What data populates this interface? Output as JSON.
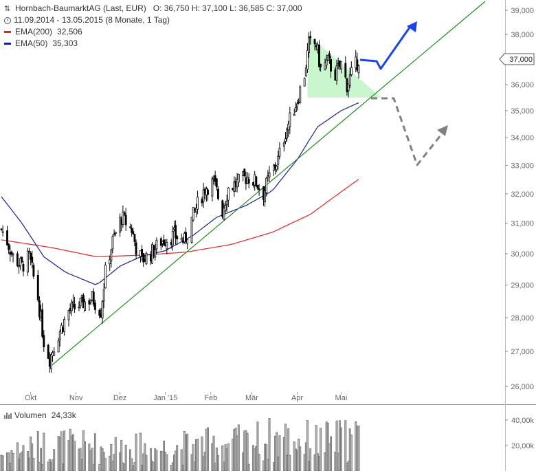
{
  "header": {
    "title": "Hornbach-BaumarktAG (Last, EUR)",
    "ohlc": "O: 36,750  H: 37,100  L: 36,585  C: 37,000",
    "period": "11.09.2014 - 13.05.2015 (8 Monate, 1 Tag)",
    "ema200_label": "EMA(200)",
    "ema200_value": "32,506",
    "ema50_label": "EMA(50)",
    "ema50_value": "35,303",
    "volume_label": "Volumen",
    "volume_value": "24,33k"
  },
  "colors": {
    "ema200": "#e8221f",
    "ema50": "#1c1c9c",
    "trendline": "#1f8c1f",
    "triangle_fill": "#bff5c4",
    "arrow_up": "#1a44e8",
    "arrow_down": "#808080",
    "candle": "#000000",
    "volume": "#8c8c8c"
  },
  "chart_data": {
    "type": "candlestick",
    "title": "Hornbach-BaumarktAG (Last, EUR)",
    "price_axis": {
      "ticks": [
        26,
        27,
        28,
        29,
        30,
        31,
        32,
        33,
        34,
        35,
        36,
        37,
        38,
        39
      ],
      "tick_labels": [
        "26,000",
        "27,000",
        "28,000",
        "29,000",
        "30,000",
        "31,000",
        "32,000",
        "33,000",
        "34,000",
        "35,000",
        "36,000",
        "37,000",
        "38,000",
        "39,000"
      ],
      "range": [
        25.6,
        39.2
      ],
      "scale": "log",
      "last_price_label": "37,000",
      "grid": false
    },
    "time_axis": {
      "start": "2014-09-11",
      "end": "2015-05-13",
      "month_labels": [
        {
          "label": "Okt",
          "date": "2014-10-01"
        },
        {
          "label": "Nov",
          "date": "2014-11-01"
        },
        {
          "label": "Dez",
          "date": "2014-12-01"
        },
        {
          "label": "Jan '15",
          "date": "2015-01-01"
        },
        {
          "label": "Feb",
          "date": "2015-02-01"
        },
        {
          "label": "Mär",
          "date": "2015-03-01"
        },
        {
          "label": "Apr",
          "date": "2015-04-01"
        },
        {
          "label": "Mai",
          "date": "2015-05-01"
        }
      ]
    },
    "close_anchors": [
      {
        "date": "2014-09-11",
        "value": 30.8
      },
      {
        "date": "2014-09-15",
        "value": 30.4
      },
      {
        "date": "2014-09-19",
        "value": 29.9
      },
      {
        "date": "2014-09-25",
        "value": 29.6
      },
      {
        "date": "2014-09-30",
        "value": 29.9
      },
      {
        "date": "2014-10-06",
        "value": 28.6
      },
      {
        "date": "2014-10-10",
        "value": 27.3
      },
      {
        "date": "2014-10-14",
        "value": 26.8
      },
      {
        "date": "2014-10-20",
        "value": 27.5
      },
      {
        "date": "2014-10-27",
        "value": 28.2
      },
      {
        "date": "2014-11-04",
        "value": 28.4
      },
      {
        "date": "2014-11-12",
        "value": 28.6
      },
      {
        "date": "2014-11-18",
        "value": 28.2
      },
      {
        "date": "2014-11-21",
        "value": 29.4
      },
      {
        "date": "2014-11-26",
        "value": 30.4
      },
      {
        "date": "2014-12-02",
        "value": 31.2
      },
      {
        "date": "2014-12-09",
        "value": 30.8
      },
      {
        "date": "2014-12-12",
        "value": 30.2
      },
      {
        "date": "2014-12-16",
        "value": 29.8
      },
      {
        "date": "2014-12-22",
        "value": 30.0
      },
      {
        "date": "2014-12-29",
        "value": 30.4
      },
      {
        "date": "2015-01-07",
        "value": 30.6
      },
      {
        "date": "2015-01-14",
        "value": 30.4
      },
      {
        "date": "2015-01-21",
        "value": 31.4
      },
      {
        "date": "2015-01-28",
        "value": 32.2
      },
      {
        "date": "2015-02-03",
        "value": 32.4
      },
      {
        "date": "2015-02-09",
        "value": 31.4
      },
      {
        "date": "2015-02-13",
        "value": 32.2
      },
      {
        "date": "2015-02-20",
        "value": 32.4
      },
      {
        "date": "2015-02-26",
        "value": 32.6
      },
      {
        "date": "2015-03-04",
        "value": 32.4
      },
      {
        "date": "2015-03-09",
        "value": 32.0
      },
      {
        "date": "2015-03-13",
        "value": 32.6
      },
      {
        "date": "2015-03-19",
        "value": 33.2
      },
      {
        "date": "2015-03-24",
        "value": 34.2
      },
      {
        "date": "2015-03-30",
        "value": 35.1
      },
      {
        "date": "2015-04-01",
        "value": 35.4
      },
      {
        "date": "2015-04-06",
        "value": 36.4
      },
      {
        "date": "2015-04-09",
        "value": 37.6
      },
      {
        "date": "2015-04-14",
        "value": 37.6
      },
      {
        "date": "2015-04-17",
        "value": 36.6
      },
      {
        "date": "2015-04-22",
        "value": 36.9
      },
      {
        "date": "2015-04-27",
        "value": 36.4
      },
      {
        "date": "2015-05-01",
        "value": 36.8
      },
      {
        "date": "2015-05-05",
        "value": 36.0
      },
      {
        "date": "2015-05-08",
        "value": 36.4
      },
      {
        "date": "2015-05-13",
        "value": 37.0
      }
    ],
    "ema200": [
      {
        "date": "2014-09-11",
        "value": 30.45
      },
      {
        "date": "2014-10-15",
        "value": 30.2
      },
      {
        "date": "2014-11-15",
        "value": 29.9
      },
      {
        "date": "2014-12-15",
        "value": 29.95
      },
      {
        "date": "2015-01-15",
        "value": 30.05
      },
      {
        "date": "2015-02-15",
        "value": 30.3
      },
      {
        "date": "2015-03-15",
        "value": 30.7
      },
      {
        "date": "2015-04-10",
        "value": 31.3
      },
      {
        "date": "2015-05-13",
        "value": 32.506
      }
    ],
    "ema50": [
      {
        "date": "2014-09-11",
        "value": 31.9
      },
      {
        "date": "2014-09-25",
        "value": 31.0
      },
      {
        "date": "2014-10-10",
        "value": 29.9
      },
      {
        "date": "2014-10-25",
        "value": 29.4
      },
      {
        "date": "2014-11-15",
        "value": 29.0
      },
      {
        "date": "2014-12-01",
        "value": 29.6
      },
      {
        "date": "2014-12-15",
        "value": 29.9
      },
      {
        "date": "2015-01-01",
        "value": 30.1
      },
      {
        "date": "2015-01-20",
        "value": 30.6
      },
      {
        "date": "2015-02-05",
        "value": 31.2
      },
      {
        "date": "2015-02-25",
        "value": 31.6
      },
      {
        "date": "2015-03-15",
        "value": 32.1
      },
      {
        "date": "2015-04-01",
        "value": 33.2
      },
      {
        "date": "2015-04-15",
        "value": 34.4
      },
      {
        "date": "2015-05-01",
        "value": 35.0
      },
      {
        "date": "2015-05-13",
        "value": 35.303
      }
    ],
    "volume_axis": {
      "ticks": [
        20000,
        40000
      ],
      "tick_labels": [
        "20,00k",
        "40,00k"
      ],
      "max": 48000
    },
    "volume_anchors": [
      {
        "date": "2014-09-11",
        "value": 13000
      },
      {
        "date": "2014-10-15",
        "value": 19000
      },
      {
        "date": "2014-11-20",
        "value": 17000
      },
      {
        "date": "2014-12-20",
        "value": 16000
      },
      {
        "date": "2015-01-20",
        "value": 18000
      },
      {
        "date": "2015-02-20",
        "value": 20000
      },
      {
        "date": "2015-03-20",
        "value": 24000
      },
      {
        "date": "2015-04-15",
        "value": 21000
      },
      {
        "date": "2015-05-13",
        "value": 24330
      }
    ],
    "annotations": {
      "trendline": {
        "from": {
          "date": "2014-10-14",
          "value": 26.55
        },
        "to": "top-right edge"
      },
      "triangle": {
        "top_left": {
          "date": "2015-04-08",
          "value": 38.0
        },
        "bottom_left": {
          "date": "2015-04-08",
          "value": 35.5
        },
        "apex": {
          "date": "2015-05-20",
          "value": 35.5
        }
      },
      "arrow_up": "blue scenario: sideways then break-out upward",
      "arrow_down": "grey dashed scenario: drop to about 33 then rebound"
    }
  }
}
